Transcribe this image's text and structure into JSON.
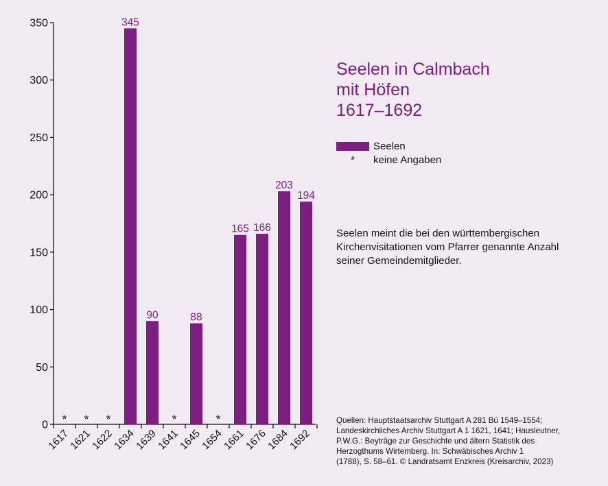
{
  "chart_data": {
    "type": "bar",
    "title_lines": [
      "Seelen in Calmbach",
      "mit Höfen",
      "1617–1692"
    ],
    "categories": [
      "1617",
      "1621",
      "1622",
      "1634",
      "1639",
      "1641",
      "1645",
      "1654",
      "1661",
      "1676",
      "1684",
      "1692"
    ],
    "series": [
      {
        "name": "Seelen",
        "values": [
          null,
          null,
          null,
          345,
          90,
          null,
          88,
          null,
          165,
          166,
          203,
          194
        ]
      }
    ],
    "missing_marker": "*",
    "ylim": [
      0,
      350
    ],
    "yticks": [
      0,
      50,
      100,
      150,
      200,
      250,
      300,
      350
    ],
    "grid": false,
    "legend": [
      {
        "symbol": "bar",
        "label": "Seelen"
      },
      {
        "symbol": "*",
        "label": "keine Angaben"
      }
    ],
    "legend_position": "right",
    "bar_color": "#7d1d82",
    "value_label_color": "#7d1d82"
  },
  "note_text": "Seelen meint die bei den württembergischen Kirchenvisitationen vom Pfarrer genannte Anzahl seiner Gemeindemitglieder.",
  "sources_lines": [
    "Quellen: Hauptstaatsarchiv Stuttgart A 281 Bü 1549–1554;",
    "Landeskirchliches Archiv Stuttgart A 1 1621, 1641; Hausleutner,",
    "P.W.G.: Beyträge zur Geschichte und ältern Statistik des",
    "Herzogthums Wirtemberg. In: Schwäbisches Archiv 1",
    "(1788), S. 58–61. © Landratsamt Enzkreis (Kreisarchiv, 2023)"
  ],
  "colors": {
    "background": "#f3ebf3",
    "accent": "#7d1d82",
    "text": "#111111"
  }
}
